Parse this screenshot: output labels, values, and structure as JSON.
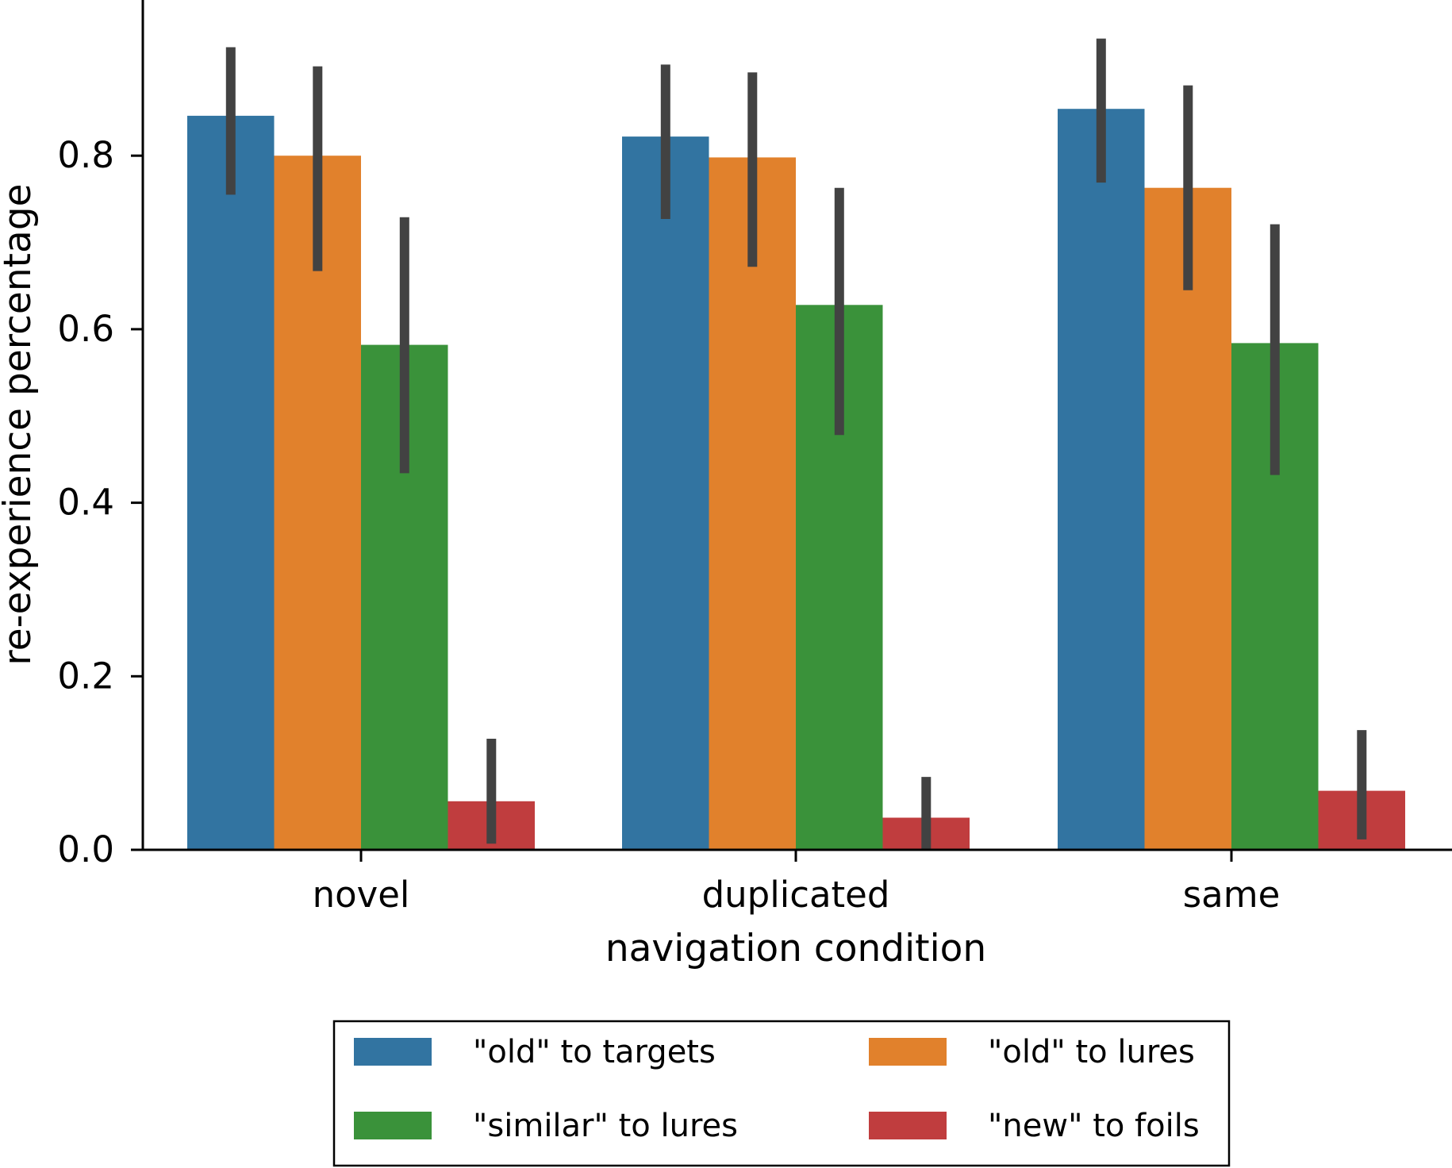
{
  "chart_data": {
    "type": "bar",
    "title": "",
    "xlabel": "navigation condition",
    "ylabel": "re-experience percentage",
    "categories": [
      "novel",
      "duplicated",
      "same"
    ],
    "ylim": [
      0,
      0.98
    ],
    "yticks": [
      "0.0",
      "0.2",
      "0.4",
      "0.6",
      "0.8"
    ],
    "grid": false,
    "legend_position": "bottom-center",
    "series": [
      {
        "name": "\"old\" to targets",
        "color": "#3274a1",
        "values": [
          0.846,
          0.822,
          0.854
        ],
        "ci_low": [
          0.755,
          0.727,
          0.769
        ],
        "ci_high": [
          0.925,
          0.905,
          0.935
        ]
      },
      {
        "name": "\"old\" to lures",
        "color": "#e1812c",
        "values": [
          0.8,
          0.798,
          0.763
        ],
        "ci_low": [
          0.667,
          0.672,
          0.645
        ],
        "ci_high": [
          0.903,
          0.896,
          0.881
        ]
      },
      {
        "name": "\"similar\" to lures",
        "color": "#3a923a",
        "values": [
          0.582,
          0.628,
          0.584
        ],
        "ci_low": [
          0.434,
          0.478,
          0.432
        ],
        "ci_high": [
          0.729,
          0.763,
          0.721
        ]
      },
      {
        "name": "\"new\" to foils",
        "color": "#c03d3e",
        "values": [
          0.056,
          0.037,
          0.068
        ],
        "ci_low": [
          0.007,
          0.0,
          0.012
        ],
        "ci_high": [
          0.128,
          0.084,
          0.138
        ]
      }
    ]
  }
}
